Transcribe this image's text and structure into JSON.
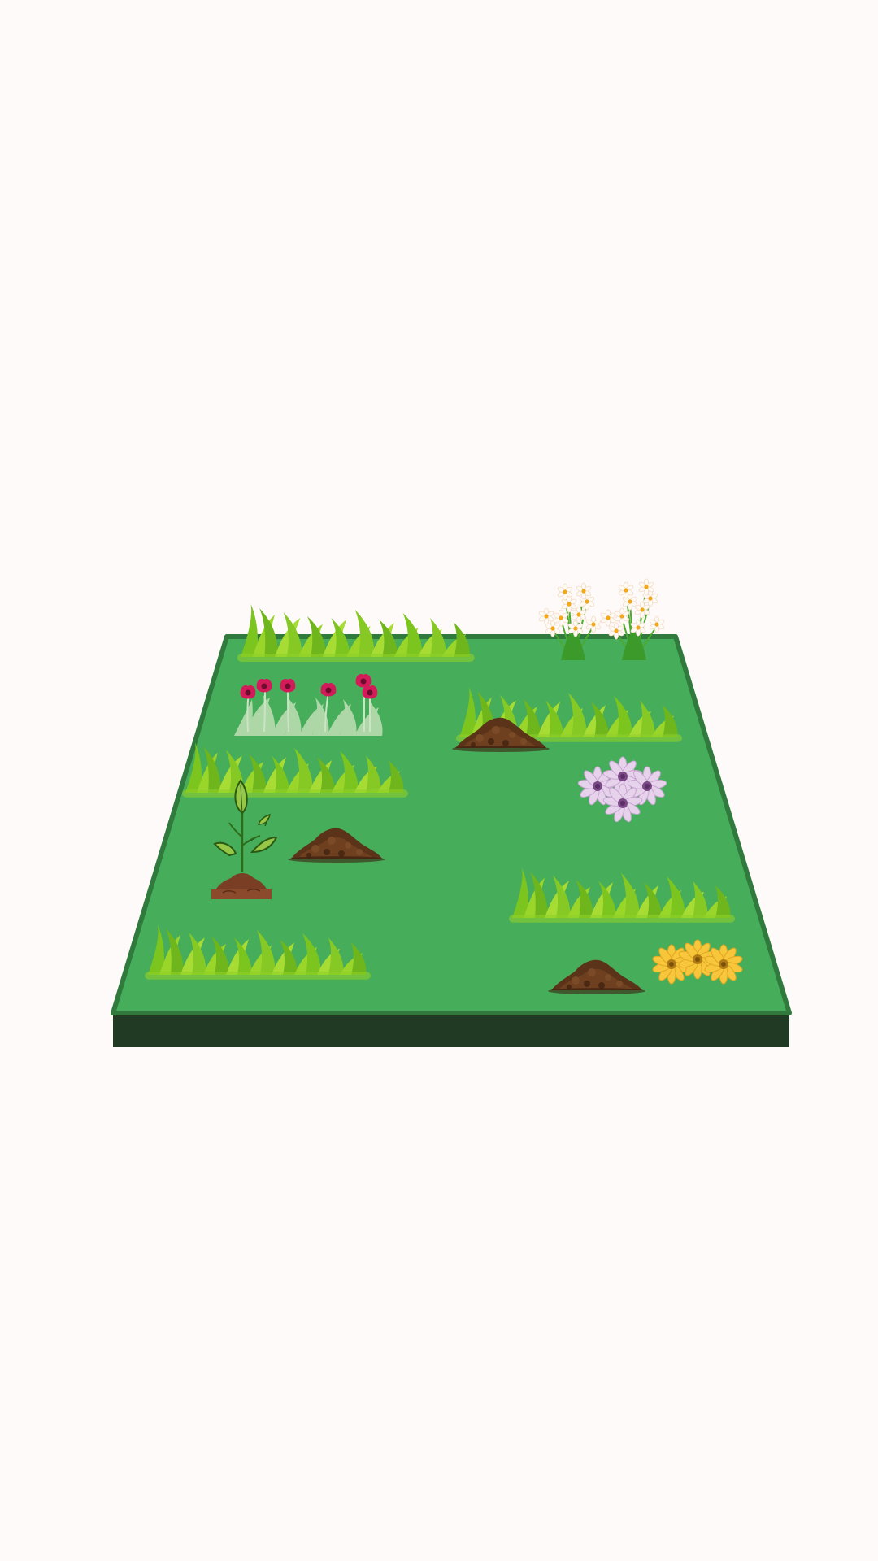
{
  "scene": {
    "background_color": "#fdfaf9",
    "plot": {
      "surface_color": "#46ad5a",
      "border_color": "#2f7a3c",
      "base_color": "#213a23"
    },
    "items": [
      {
        "kind": "grass",
        "icon": "grass-icon"
      },
      {
        "kind": "daisy-cluster",
        "icon": "white-daisy-flowers-icon"
      },
      {
        "kind": "poppies",
        "icon": "red-poppy-flowers-icon"
      },
      {
        "kind": "grass",
        "icon": "grass-icon"
      },
      {
        "kind": "soil-mound",
        "icon": "soil-mound-icon"
      },
      {
        "kind": "grass",
        "icon": "grass-icon"
      },
      {
        "kind": "purple-daisies",
        "icon": "purple-daisy-flowers-icon"
      },
      {
        "kind": "sprout",
        "icon": "seedling-sprout-icon"
      },
      {
        "kind": "soil-mound",
        "icon": "soil-mound-icon"
      },
      {
        "kind": "grass",
        "icon": "grass-icon"
      },
      {
        "kind": "grass",
        "icon": "grass-icon"
      },
      {
        "kind": "soil-mound",
        "icon": "soil-mound-icon"
      },
      {
        "kind": "yellow-daisies",
        "icon": "yellow-daisy-flowers-icon"
      }
    ]
  }
}
